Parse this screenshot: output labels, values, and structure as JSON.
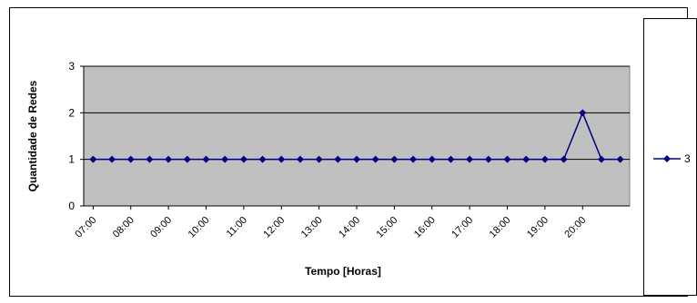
{
  "chart_data": {
    "type": "line",
    "xlabel": "Tempo [Horas]",
    "ylabel": "Quantidade de Redes",
    "ylim": [
      0,
      3
    ],
    "yticks": [
      "0",
      "1",
      "2",
      "3"
    ],
    "x_tick_labels": [
      "07:00",
      "08:00",
      "09:00",
      "10:00",
      "11:00",
      "12:00",
      "13:00",
      "14:00",
      "15:00",
      "16:00",
      "17:00",
      "18:00",
      "19:00",
      "20:00"
    ],
    "grid": "horizontal",
    "plot_background": "#c0c0c0",
    "legend_position": "right",
    "series": [
      {
        "name": "3",
        "color": "#000080",
        "marker": "diamond",
        "values": [
          1,
          1,
          1,
          1,
          1,
          1,
          1,
          1,
          1,
          1,
          1,
          1,
          1,
          1,
          1,
          1,
          1,
          1,
          1,
          1,
          1,
          1,
          1,
          1,
          1,
          1,
          2,
          1,
          1
        ]
      }
    ]
  }
}
